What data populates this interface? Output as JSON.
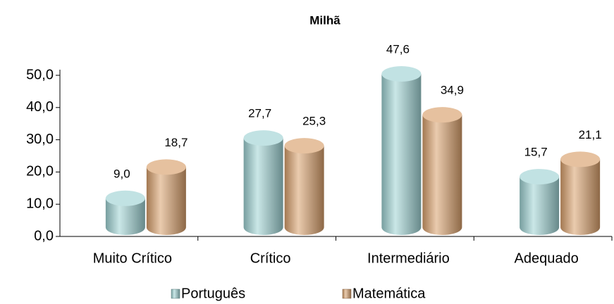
{
  "chart_data": {
    "type": "bar",
    "title": "Milhã",
    "categories": [
      "Muito Crítico",
      "Crítico",
      "Intermediário",
      "Adequado"
    ],
    "series": [
      {
        "name": "Português",
        "color": "#9fd3d4",
        "values": [
          9.0,
          27.7,
          47.6,
          15.7
        ],
        "value_labels": [
          "9,0",
          "27,7",
          "47,6",
          "15,7"
        ]
      },
      {
        "name": "Matemática",
        "color": "#d9a06c",
        "values": [
          18.7,
          25.3,
          34.9,
          21.1
        ],
        "value_labels": [
          "18,7",
          "25,3",
          "34,9",
          "21,1"
        ]
      }
    ],
    "ylim": [
      0,
      50
    ],
    "yticks": [
      {
        "value": 0,
        "label": "0,0"
      },
      {
        "value": 10,
        "label": "10,0"
      },
      {
        "value": 20,
        "label": "20,0"
      },
      {
        "value": 30,
        "label": "30,0"
      },
      {
        "value": 40,
        "label": "40,0"
      },
      {
        "value": 50,
        "label": "50,0"
      }
    ],
    "legend": "bottom"
  }
}
